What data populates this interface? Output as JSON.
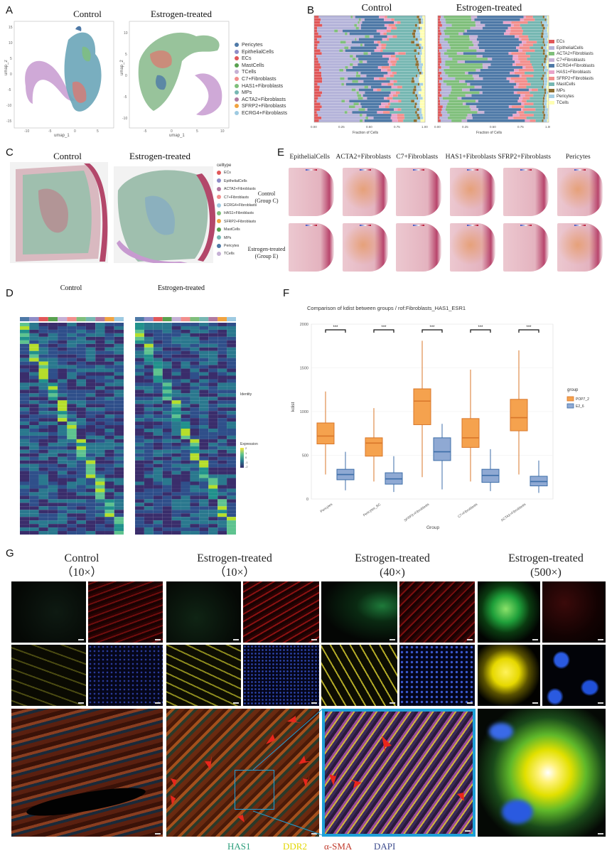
{
  "panelA": {
    "label": "A",
    "titles": [
      "Control",
      "Estrogen-treated"
    ],
    "xlabel": "umap_1",
    "ylabel": "umap_2",
    "yticks_left": [
      "15",
      "10",
      "5",
      "0",
      "-5",
      "-10",
      "-15"
    ],
    "xticks_left": [
      "-10",
      "-5",
      "0",
      "5"
    ],
    "yticks_right": [
      "10",
      "5",
      "0",
      "-5",
      "-10"
    ],
    "xticks_right": [
      "-5",
      "0",
      "5",
      "10"
    ],
    "legend": [
      {
        "label": "Pericytes",
        "color": "#4e79a7"
      },
      {
        "label": "EpithelialCells",
        "color": "#8e8cc7"
      },
      {
        "label": "ECs",
        "color": "#e15759"
      },
      {
        "label": "MastCells",
        "color": "#59a14f"
      },
      {
        "label": "TCells",
        "color": "#c5b0d5"
      },
      {
        "label": "C7+Fibroblasts",
        "color": "#f28e8c"
      },
      {
        "label": "HAS1+Fibroblasts",
        "color": "#7fbf7b"
      },
      {
        "label": "MPs",
        "color": "#76b7b2"
      },
      {
        "label": "ACTA2+Fibroblasts",
        "color": "#b07aa1"
      },
      {
        "label": "SFRP2+Fibroblasts",
        "color": "#f1a340"
      },
      {
        "label": "ECRG4+Fibroblasts",
        "color": "#9ecae1"
      }
    ]
  },
  "panelB": {
    "label": "B",
    "titles": [
      "Control",
      "Estrogen-treated"
    ],
    "xlabel": "Fraction of Cells",
    "xticks": [
      "0.00",
      "0.25",
      "0.50",
      "0.75",
      "1.00"
    ],
    "legend": [
      {
        "label": "ECs",
        "color": "#e15759"
      },
      {
        "label": "EpithelialCells",
        "color": "#b4b3d9"
      },
      {
        "label": "ACTA2+Fibroblasts",
        "color": "#7fbf7b"
      },
      {
        "label": "C7+Fibroblasts",
        "color": "#c5b0d5"
      },
      {
        "label": "ECRG4+Fibroblasts",
        "color": "#4e79a7"
      },
      {
        "label": "HAS1+Fibroblasts",
        "color": "#e9a3c9"
      },
      {
        "label": "SFRP2+Fibroblasts",
        "color": "#f28e8c"
      },
      {
        "label": "MastCells",
        "color": "#76b7b2"
      },
      {
        "label": "MPs",
        "color": "#8c6d31"
      },
      {
        "label": "Pericytes",
        "color": "#a6cee3"
      },
      {
        "label": "TCells",
        "color": "#ffffb3"
      }
    ]
  },
  "panelC": {
    "label": "C",
    "titles": [
      "Control",
      "Estrogen-treated"
    ],
    "legend_title": "celltype",
    "legend": [
      {
        "label": "ECs",
        "color": "#e15759"
      },
      {
        "label": "EpithelialCells",
        "color": "#8e8cc7"
      },
      {
        "label": "ACTA2+Fibroblasts",
        "color": "#b07aa1"
      },
      {
        "label": "C7+Fibroblasts",
        "color": "#f28e8c"
      },
      {
        "label": "ECRG4+Fibroblasts",
        "color": "#9ecae1"
      },
      {
        "label": "HAS1+Fibroblasts",
        "color": "#7fbf7b"
      },
      {
        "label": "SFRP2+Fibroblasts",
        "color": "#f1a340"
      },
      {
        "label": "MastCells",
        "color": "#59a14f"
      },
      {
        "label": "MPs",
        "color": "#76b7b2"
      },
      {
        "label": "Pericytes",
        "color": "#4e79a7"
      },
      {
        "label": "TCells",
        "color": "#c5b0d5"
      }
    ]
  },
  "panelE": {
    "label": "E",
    "columns": [
      "EpithelialCells",
      "ACTA2+Fibroblasts",
      "C7+Fibroblasts",
      "HAS1+Fibroblasts",
      "SFRP2+Fibroblasts",
      "Pericytes"
    ],
    "rows": [
      {
        "line1": "Control",
        "line2": "(Group C)"
      },
      {
        "line1": "Estrogen-treated",
        "line2": "(Group E)"
      }
    ]
  },
  "panelD": {
    "label": "D",
    "titles": [
      "Control",
      "Estrogen-treated"
    ],
    "legend_title": "Identity",
    "expression_title": "Expression",
    "expression_ticks": [
      "2",
      "1",
      "0",
      "-1",
      "-2"
    ]
  },
  "panelF": {
    "label": "F",
    "chart_data": {
      "type": "box",
      "title": "Comparison of kdist between groups / rof:Fibroblasts_HAS1_ESR1",
      "xlabel": "Group",
      "ylabel": "kdist",
      "ylim": [
        0,
        2000
      ],
      "yticks": [
        0,
        500,
        1000,
        1500,
        2000
      ],
      "categories": [
        "Pericytes",
        "Pericytes_BC",
        "SFRP2+Fibroblasts",
        "C7+Fibroblasts",
        "ACTA2+Fibroblasts"
      ],
      "significance": [
        "***",
        "***",
        "***",
        "***",
        "***"
      ],
      "legend_title": "group",
      "series": [
        {
          "name": "POP7_2",
          "color": "#f5a24e",
          "edge": "#d9772a",
          "boxes": [
            {
              "min": 280,
              "q1": 630,
              "median": 720,
              "q3": 870,
              "max": 1230
            },
            {
              "min": 200,
              "q1": 490,
              "median": 640,
              "q3": 700,
              "max": 1040
            },
            {
              "min": 250,
              "q1": 850,
              "median": 1120,
              "q3": 1260,
              "max": 1810
            },
            {
              "min": 200,
              "q1": 590,
              "median": 700,
              "q3": 920,
              "max": 1480
            },
            {
              "min": 280,
              "q1": 780,
              "median": 930,
              "q3": 1140,
              "max": 1700
            }
          ]
        },
        {
          "name": "E2_6",
          "color": "#8fa9d3",
          "edge": "#3d6ea8",
          "boxes": [
            {
              "min": 100,
              "q1": 220,
              "median": 280,
              "q3": 340,
              "max": 540
            },
            {
              "min": 80,
              "q1": 170,
              "median": 230,
              "q3": 300,
              "max": 490
            },
            {
              "min": 110,
              "q1": 440,
              "median": 540,
              "q3": 700,
              "max": 860
            },
            {
              "min": 90,
              "q1": 190,
              "median": 270,
              "q3": 340,
              "max": 570
            },
            {
              "min": 70,
              "q1": 150,
              "median": 200,
              "q3": 260,
              "max": 440
            }
          ]
        }
      ]
    }
  },
  "panelG": {
    "label": "G",
    "columns": [
      {
        "line1": "Control",
        "line2": "（10×）"
      },
      {
        "line1": "Estrogen-treated",
        "line2": "（10×）"
      },
      {
        "line1": "Estrogen-treated",
        "line2": "(40×)"
      },
      {
        "line1": "Estrogen-treated",
        "line2": "(500×)"
      }
    ],
    "channels": [
      {
        "label": "HAS1",
        "color": "#2a9d7a"
      },
      {
        "label": "DDR2",
        "color": "#e2d600"
      },
      {
        "label": "α-SMA",
        "color": "#c0392b"
      },
      {
        "label": "DAPI",
        "color": "#3b4a8c"
      }
    ]
  }
}
